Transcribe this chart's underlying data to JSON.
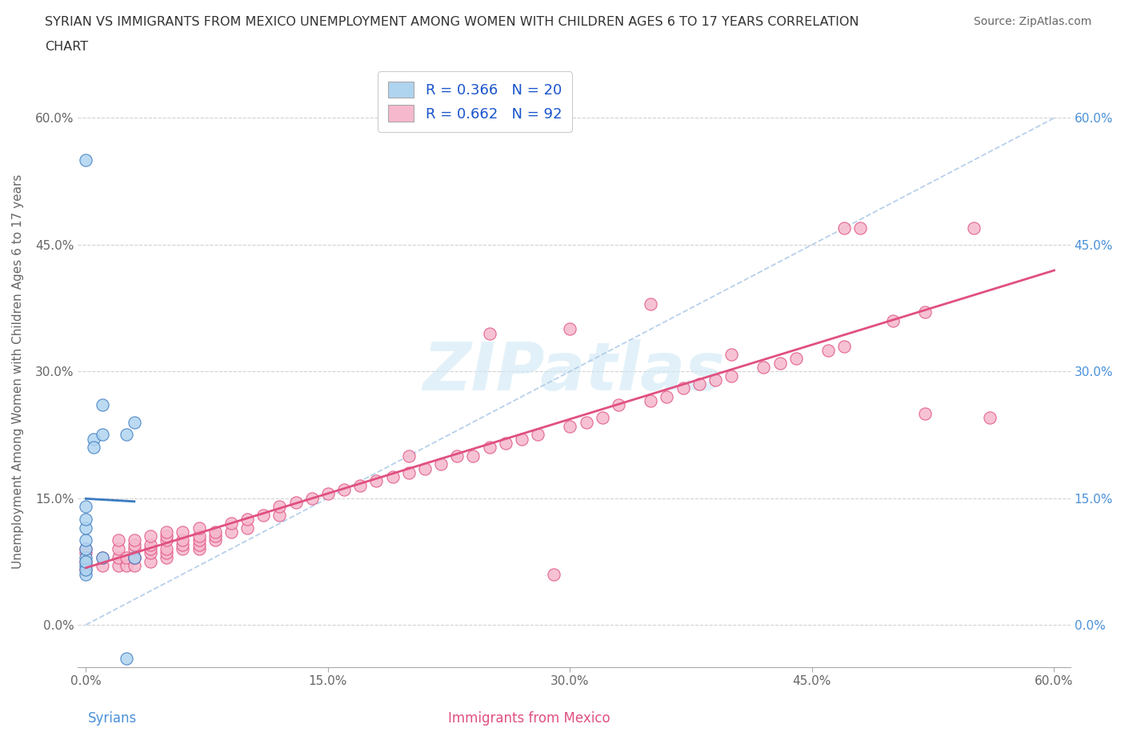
{
  "title_line1": "SYRIAN VS IMMIGRANTS FROM MEXICO UNEMPLOYMENT AMONG WOMEN WITH CHILDREN AGES 6 TO 17 YEARS CORRELATION",
  "title_line2": "CHART",
  "source_text": "Source: ZipAtlas.com",
  "ylabel": "Unemployment Among Women with Children Ages 6 to 17 years",
  "xlabel_syrians": "Syrians",
  "xlabel_mexico": "Immigrants from Mexico",
  "syrian_R": 0.366,
  "syrian_N": 20,
  "mexico_R": 0.662,
  "mexico_N": 92,
  "syrian_color": "#afd4f0",
  "mexico_color": "#f5b8cc",
  "syrian_line_color": "#3a7abf",
  "mexico_line_color": "#e05080",
  "diag_line_color": "#aac8e8",
  "watermark_color": "#d0e8f5",
  "syrian_scatter_x": [
    0.0,
    0.0,
    0.0,
    0.0,
    0.0,
    0.0,
    0.0,
    0.0,
    0.0,
    0.0,
    0.005,
    0.005,
    0.01,
    0.01,
    0.01,
    0.025,
    0.03,
    0.03,
    0.0,
    0.025
  ],
  "syrian_scatter_y": [
    0.07,
    0.08,
    0.09,
    0.1,
    0.115,
    0.125,
    0.14,
    0.06,
    0.065,
    0.075,
    0.22,
    0.21,
    0.225,
    0.26,
    0.08,
    0.225,
    0.24,
    0.08,
    0.55,
    -0.04
  ],
  "mexico_scatter_x": [
    0.0,
    0.0,
    0.0,
    0.0,
    0.01,
    0.01,
    0.02,
    0.02,
    0.02,
    0.02,
    0.025,
    0.025,
    0.03,
    0.03,
    0.03,
    0.03,
    0.03,
    0.03,
    0.04,
    0.04,
    0.04,
    0.04,
    0.04,
    0.05,
    0.05,
    0.05,
    0.05,
    0.05,
    0.05,
    0.06,
    0.06,
    0.06,
    0.06,
    0.07,
    0.07,
    0.07,
    0.07,
    0.07,
    0.08,
    0.08,
    0.08,
    0.09,
    0.09,
    0.1,
    0.1,
    0.11,
    0.12,
    0.12,
    0.13,
    0.14,
    0.15,
    0.16,
    0.17,
    0.18,
    0.19,
    0.2,
    0.21,
    0.22,
    0.23,
    0.24,
    0.25,
    0.26,
    0.27,
    0.28,
    0.29,
    0.3,
    0.31,
    0.32,
    0.33,
    0.35,
    0.36,
    0.37,
    0.38,
    0.39,
    0.4,
    0.42,
    0.43,
    0.44,
    0.46,
    0.47,
    0.47,
    0.48,
    0.5,
    0.52,
    0.52,
    0.55,
    0.56,
    0.3,
    0.25,
    0.2,
    0.35,
    0.4
  ],
  "mexico_scatter_y": [
    0.065,
    0.075,
    0.085,
    0.09,
    0.07,
    0.08,
    0.07,
    0.08,
    0.09,
    0.1,
    0.07,
    0.08,
    0.07,
    0.08,
    0.08,
    0.09,
    0.095,
    0.1,
    0.075,
    0.085,
    0.09,
    0.095,
    0.105,
    0.08,
    0.085,
    0.09,
    0.1,
    0.105,
    0.11,
    0.09,
    0.095,
    0.1,
    0.11,
    0.09,
    0.095,
    0.1,
    0.105,
    0.115,
    0.1,
    0.105,
    0.11,
    0.11,
    0.12,
    0.115,
    0.125,
    0.13,
    0.13,
    0.14,
    0.145,
    0.15,
    0.155,
    0.16,
    0.165,
    0.17,
    0.175,
    0.18,
    0.185,
    0.19,
    0.2,
    0.2,
    0.21,
    0.215,
    0.22,
    0.225,
    0.06,
    0.235,
    0.24,
    0.245,
    0.26,
    0.265,
    0.27,
    0.28,
    0.285,
    0.29,
    0.295,
    0.305,
    0.31,
    0.315,
    0.325,
    0.33,
    0.47,
    0.47,
    0.36,
    0.37,
    0.25,
    0.47,
    0.245,
    0.35,
    0.345,
    0.2,
    0.38,
    0.32
  ]
}
